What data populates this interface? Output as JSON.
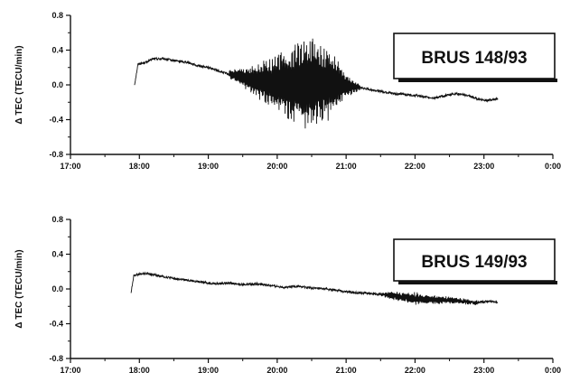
{
  "chart_data": [
    {
      "type": "line",
      "ylabel": "Δ TEC (TECU/min)",
      "annotation": "BRUS 148/93",
      "xlim": [
        17.0,
        24.0
      ],
      "ylim": [
        -0.8,
        0.8
      ],
      "x_ticks": [
        "17:00",
        "18:00",
        "19:00",
        "20:00",
        "21:00",
        "22:00",
        "23:00",
        "0:00"
      ],
      "y_ticks": [
        "0.8",
        "0.4",
        "0.0",
        "-0.4",
        "-0.8"
      ],
      "series": [
        {
          "x": [
            17.93,
            17.98,
            18.1,
            18.2,
            18.35,
            18.5,
            18.7,
            18.85,
            19.0,
            19.15,
            19.3,
            19.45,
            19.6,
            19.75,
            19.9,
            20.05,
            20.2,
            20.35,
            20.5,
            20.65,
            20.8,
            20.95,
            21.1,
            21.25,
            21.4,
            21.55,
            21.7,
            21.85,
            22.0,
            22.15,
            22.3,
            22.45,
            22.6,
            22.75,
            22.9,
            23.05,
            23.2
          ],
          "y": [
            0.0,
            0.24,
            0.26,
            0.3,
            0.3,
            0.28,
            0.26,
            0.22,
            0.2,
            0.16,
            0.12,
            0.1,
            0.06,
            0.04,
            0.02,
            0.02,
            0.0,
            0.0,
            0.02,
            0.02,
            0.02,
            0.0,
            -0.02,
            -0.04,
            -0.06,
            -0.08,
            -0.1,
            -0.11,
            -0.12,
            -0.14,
            -0.15,
            -0.12,
            -0.1,
            -0.12,
            -0.16,
            -0.18,
            -0.16
          ],
          "oscillation": [
            {
              "x": 19.3,
              "amp": 0.05
            },
            {
              "x": 19.6,
              "amp": 0.15
            },
            {
              "x": 19.9,
              "amp": 0.3
            },
            {
              "x": 20.2,
              "amp": 0.45
            },
            {
              "x": 20.5,
              "amp": 0.55
            },
            {
              "x": 20.75,
              "amp": 0.42
            },
            {
              "x": 21.0,
              "amp": 0.15
            },
            {
              "x": 21.2,
              "amp": 0.03
            }
          ]
        }
      ]
    },
    {
      "type": "line",
      "ylabel": "Δ TEC (TECU/min)",
      "annotation": "BRUS 149/93",
      "xlim": [
        17.0,
        24.0
      ],
      "ylim": [
        -0.8,
        0.8
      ],
      "x_ticks": [
        "17:00",
        "18:00",
        "19:00",
        "20:00",
        "21:00",
        "22:00",
        "23:00",
        "0:00"
      ],
      "y_ticks": [
        "0.8",
        "0.4",
        "0.0",
        "-0.4",
        "-0.8"
      ],
      "series": [
        {
          "x": [
            17.88,
            17.92,
            18.1,
            18.3,
            18.5,
            18.7,
            18.9,
            19.1,
            19.3,
            19.5,
            19.7,
            19.9,
            20.1,
            20.3,
            20.5,
            20.7,
            20.9,
            21.1,
            21.3,
            21.5,
            21.7,
            21.9,
            22.1,
            22.3,
            22.5,
            22.7,
            22.9,
            23.05,
            23.2
          ],
          "y": [
            -0.04,
            0.16,
            0.18,
            0.15,
            0.12,
            0.1,
            0.08,
            0.06,
            0.07,
            0.05,
            0.06,
            0.04,
            0.02,
            0.03,
            0.01,
            0.0,
            -0.02,
            -0.04,
            -0.05,
            -0.06,
            -0.08,
            -0.1,
            -0.12,
            -0.12,
            -0.13,
            -0.14,
            -0.16,
            -0.14,
            -0.15
          ],
          "oscillation": [
            {
              "x": 21.4,
              "amp": 0.0
            },
            {
              "x": 21.7,
              "amp": 0.05
            },
            {
              "x": 22.0,
              "amp": 0.07
            },
            {
              "x": 22.3,
              "amp": 0.05
            },
            {
              "x": 22.6,
              "amp": 0.03
            },
            {
              "x": 22.9,
              "amp": 0.02
            }
          ]
        }
      ]
    }
  ]
}
